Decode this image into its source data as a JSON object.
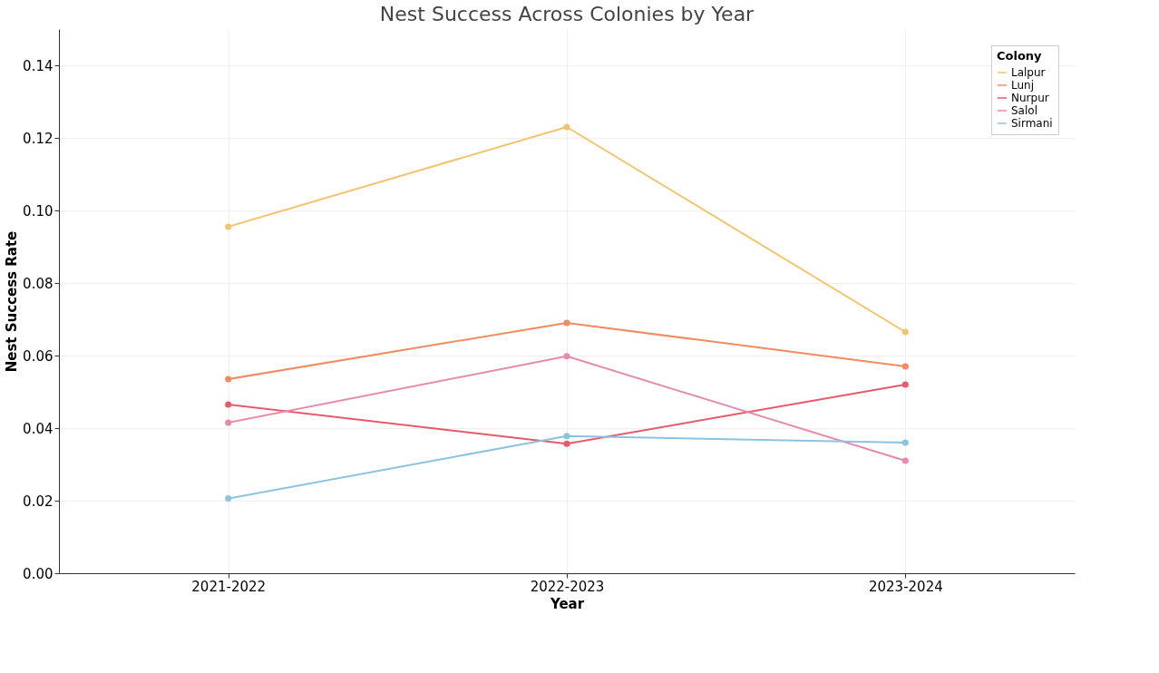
{
  "chart_data": {
    "type": "line",
    "title": "Nest Success Across Colonies by Year",
    "xlabel": "Year",
    "ylabel": "Nest Success Rate",
    "legend_title": "Colony",
    "categories": [
      "2021-2022",
      "2022-2023",
      "2023-2024"
    ],
    "series": [
      {
        "name": "Lalpur",
        "color": "#f2c46e",
        "values": [
          0.0955,
          0.123,
          0.0665
        ]
      },
      {
        "name": "Lunj",
        "color": "#f08c5e",
        "values": [
          0.0535,
          0.069,
          0.057
        ]
      },
      {
        "name": "Nurpur",
        "color": "#e65a6a",
        "values": [
          0.0465,
          0.0357,
          0.052
        ]
      },
      {
        "name": "Salol",
        "color": "#e78bac",
        "values": [
          0.0415,
          0.0598,
          0.031
        ]
      },
      {
        "name": "Sirmani",
        "color": "#8cc3e0",
        "values": [
          0.0206,
          0.0378,
          0.036
        ]
      }
    ],
    "ylim": [
      0,
      0.15
    ],
    "yticks": [
      {
        "value": 0,
        "label": "0.00"
      },
      0.02,
      0.04,
      0.06,
      0.08,
      {
        "value": 0.1,
        "label": "0.10"
      },
      0.12,
      0.14
    ],
    "grid": true,
    "legend": "top right",
    "marker": "circle",
    "line_style": "solid"
  }
}
